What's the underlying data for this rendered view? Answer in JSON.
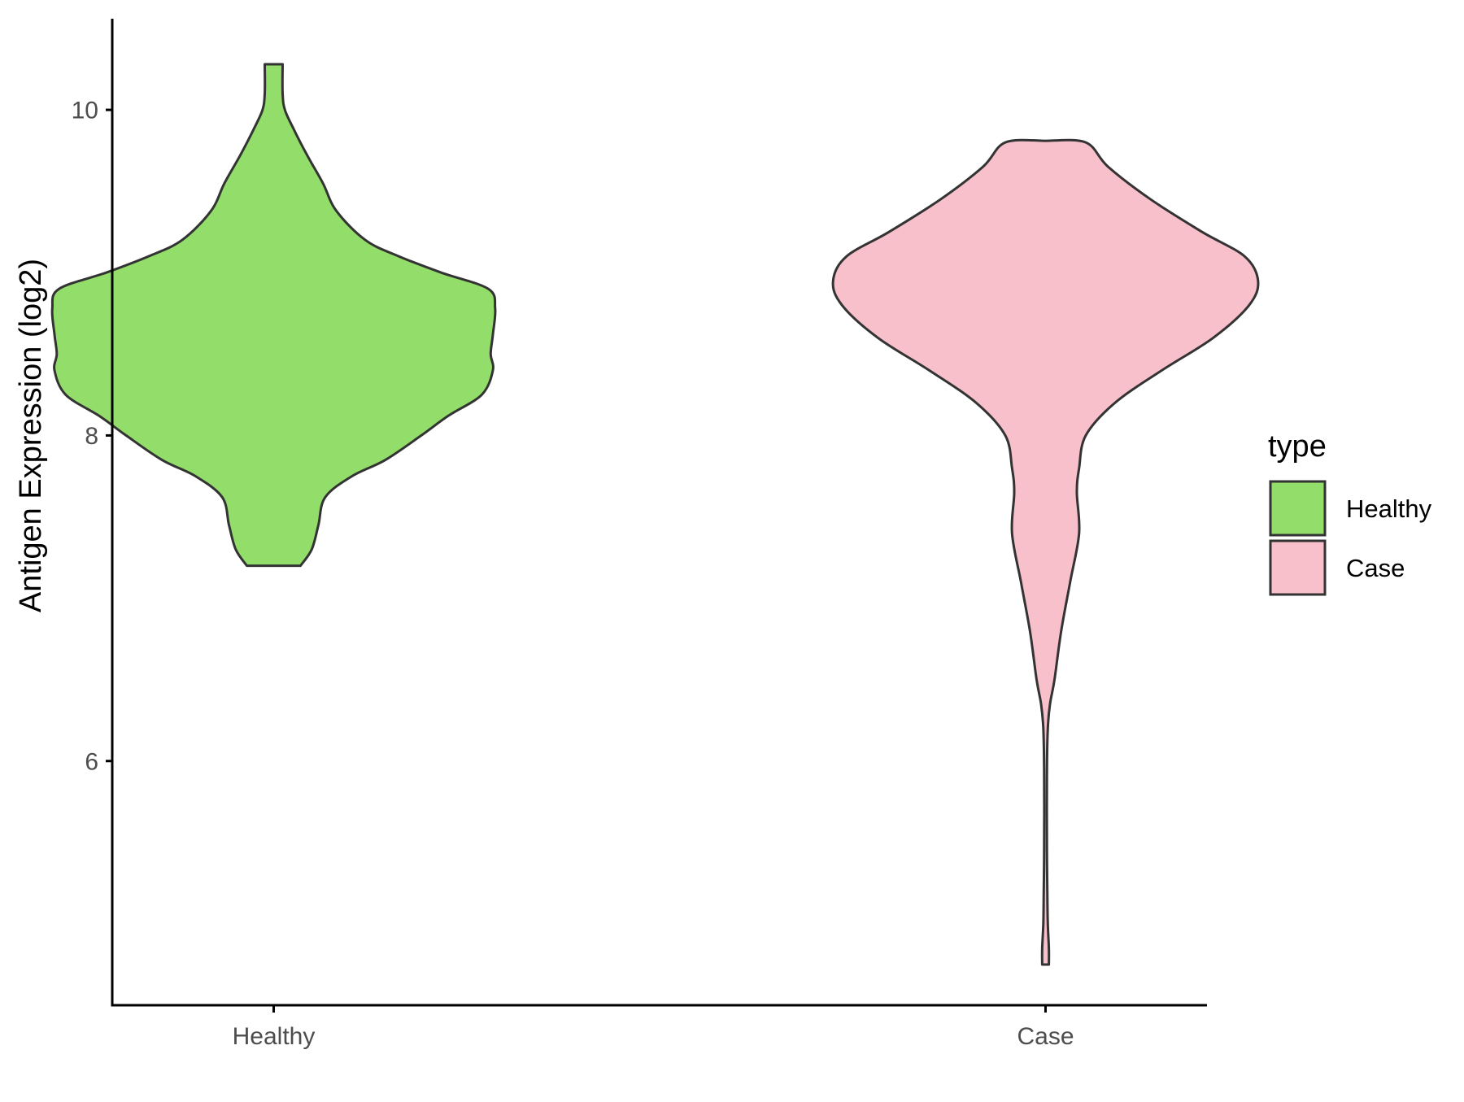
{
  "chart_data": {
    "type": "violin",
    "title": "",
    "xlabel": "",
    "ylabel": "Antigen Expression (log2)",
    "categories": [
      "Healthy",
      "Case"
    ],
    "y_ticks": [
      6,
      8,
      10
    ],
    "ylim": [
      4.5,
      10.55
    ],
    "grid": false,
    "legend": {
      "title": "type",
      "position": "right",
      "entries": [
        {
          "label": "Healthy",
          "color": "#93DD6B"
        },
        {
          "label": "Case",
          "color": "#F7C0CB"
        }
      ]
    },
    "outline_color": "#333333",
    "series": [
      {
        "category": "Healthy",
        "color": "#93DD6B",
        "min": 7.2,
        "max": 10.28,
        "profile": [
          [
            7.2,
            0.12
          ],
          [
            7.3,
            0.17
          ],
          [
            7.45,
            0.2
          ],
          [
            7.62,
            0.23
          ],
          [
            7.75,
            0.35
          ],
          [
            7.85,
            0.5
          ],
          [
            8.0,
            0.66
          ],
          [
            8.12,
            0.78
          ],
          [
            8.25,
            0.93
          ],
          [
            8.4,
            0.98
          ],
          [
            8.5,
            0.97
          ],
          [
            8.62,
            0.98
          ],
          [
            8.78,
            0.99
          ],
          [
            8.9,
            0.96
          ],
          [
            9.0,
            0.75
          ],
          [
            9.1,
            0.56
          ],
          [
            9.2,
            0.41
          ],
          [
            9.38,
            0.28
          ],
          [
            9.55,
            0.22
          ],
          [
            9.72,
            0.15
          ],
          [
            9.88,
            0.09
          ],
          [
            10.0,
            0.05
          ],
          [
            10.1,
            0.04
          ],
          [
            10.28,
            0.04
          ]
        ]
      },
      {
        "category": "Case",
        "color": "#F7C0CB",
        "min": 4.75,
        "max": 9.81,
        "profile": [
          [
            4.75,
            0.015
          ],
          [
            4.85,
            0.015
          ],
          [
            5.0,
            0.01
          ],
          [
            5.2,
            0.008
          ],
          [
            5.5,
            0.006
          ],
          [
            5.9,
            0.006
          ],
          [
            6.2,
            0.01
          ],
          [
            6.35,
            0.02
          ],
          [
            6.5,
            0.04
          ],
          [
            6.8,
            0.07
          ],
          [
            7.1,
            0.11
          ],
          [
            7.4,
            0.15
          ],
          [
            7.65,
            0.14
          ],
          [
            7.8,
            0.15
          ],
          [
            8.0,
            0.18
          ],
          [
            8.2,
            0.31
          ],
          [
            8.4,
            0.52
          ],
          [
            8.6,
            0.75
          ],
          [
            8.8,
            0.91
          ],
          [
            8.95,
            0.95
          ],
          [
            9.1,
            0.89
          ],
          [
            9.25,
            0.7
          ],
          [
            9.45,
            0.47
          ],
          [
            9.65,
            0.28
          ],
          [
            9.8,
            0.18
          ],
          [
            9.81,
            0.0
          ]
        ]
      }
    ]
  }
}
